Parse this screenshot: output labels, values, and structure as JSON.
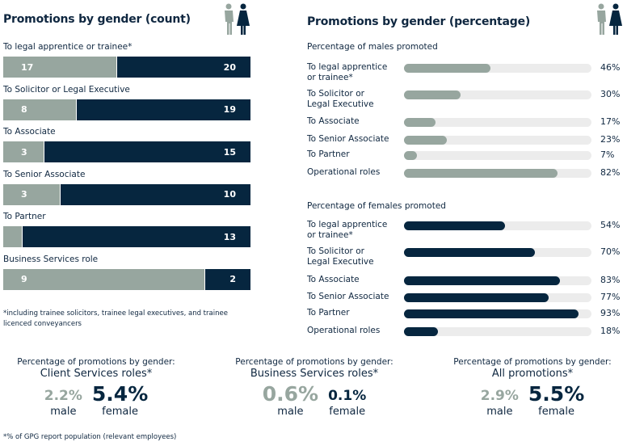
{
  "count_chart": {
    "title": "Promotions by gender (count)",
    "icon": "male-female-people-icon",
    "footnote": "*including trainee solicitors, trainee legal executives, and trainee licenced conveyancers"
  },
  "percentage_chart": {
    "title": "Promotions by gender (percentage)",
    "icon": "male-female-people-icon",
    "males_heading": "Percentage of males promoted",
    "females_heading": "Percentage of females promoted"
  },
  "colors": {
    "male": "#97a69f",
    "female": "#06263f",
    "track": "#ececec",
    "text": "#0f2740"
  },
  "chart_data": [
    {
      "type": "bar",
      "stacked": true,
      "orientation": "horizontal",
      "title": "Promotions by gender (count)",
      "categories": [
        "To legal apprentice or trainee*",
        "To Solicitor or Legal Executive",
        "To Associate",
        "To Senior Associate",
        "To Partner",
        "Business Services role"
      ],
      "series": [
        {
          "name": "male",
          "values": [
            17,
            8,
            3,
            3,
            1,
            9
          ]
        },
        {
          "name": "female",
          "values": [
            20,
            19,
            15,
            10,
            13,
            2
          ]
        }
      ],
      "value_labels": {
        "male": [
          "17",
          "8",
          "3",
          "3",
          "1",
          "9"
        ],
        "female": [
          "20",
          "19",
          "15",
          "10",
          "13",
          "2"
        ]
      }
    },
    {
      "type": "bar",
      "orientation": "horizontal",
      "title": "Percentage of males promoted",
      "categories": [
        "To legal apprentice or trainee*",
        "To Solicitor or Legal Executive",
        "To Associate",
        "To Senior Associate",
        "To Partner",
        "Operational roles"
      ],
      "values": [
        46,
        30,
        17,
        23,
        7,
        82
      ],
      "value_labels": [
        "46%",
        "30%",
        "17%",
        "23%",
        "7%",
        "82%"
      ],
      "xlim": [
        0,
        100
      ]
    },
    {
      "type": "bar",
      "orientation": "horizontal",
      "title": "Percentage of females promoted",
      "categories": [
        "To legal apprentice or trainee*",
        "To Solicitor or Legal Executive",
        "To Associate",
        "To Senior Associate",
        "To Partner",
        "Operational roles"
      ],
      "values": [
        54,
        70,
        83,
        77,
        93,
        18
      ],
      "value_labels": [
        "54%",
        "70%",
        "83%",
        "77%",
        "93%",
        "18%"
      ],
      "xlim": [
        0,
        100
      ]
    }
  ],
  "pct_labels": [
    [
      "To legal apprentice",
      "or trainee*"
    ],
    [
      "To Solicitor or",
      "Legal Executive"
    ],
    [
      "To Associate"
    ],
    [
      "To Senior Associate"
    ],
    [
      "To Partner"
    ],
    [
      "Operational roles"
    ]
  ],
  "summaries": [
    {
      "top": "Percentage of promotions by gender:",
      "sub": "Client Services roles*",
      "male_value": "2.2%",
      "female_value": "5.4%",
      "male_label": "male",
      "female_label": "female"
    },
    {
      "top": "Percentage of promotions by gender:",
      "sub": "Business Services roles*",
      "male_value": "0.6%",
      "female_value": "0.1%",
      "male_label": "male",
      "female_label": "female"
    },
    {
      "top": "Percentage of promotions by gender:",
      "sub": "All promotions*",
      "male_value": "2.9%",
      "female_value": "5.5%",
      "male_label": "male",
      "female_label": "female"
    }
  ],
  "bottom_footnote": "*% of GPG report population (relevant employees)"
}
